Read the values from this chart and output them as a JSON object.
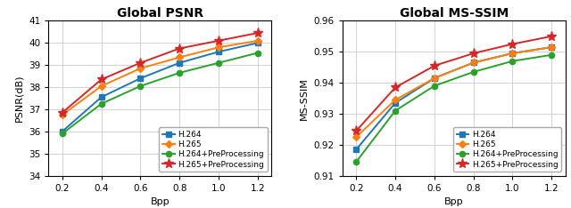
{
  "bpp": [
    0.2,
    0.4,
    0.6,
    0.8,
    1.0,
    1.2
  ],
  "psnr": {
    "H.264": [
      36.0,
      37.55,
      38.4,
      39.1,
      39.6,
      40.0
    ],
    "H.265": [
      36.75,
      38.05,
      38.85,
      39.35,
      39.8,
      40.1
    ],
    "H.264+PreProcessing": [
      35.9,
      37.25,
      38.05,
      38.65,
      39.1,
      39.55
    ],
    "H.265+PreProcessing": [
      36.85,
      38.35,
      39.1,
      39.75,
      40.1,
      40.45
    ]
  },
  "msssim": {
    "H.264": [
      0.9185,
      0.9335,
      0.9415,
      0.9465,
      0.9495,
      0.9515
    ],
    "H.265": [
      0.9225,
      0.9345,
      0.9415,
      0.9465,
      0.9495,
      0.9515
    ],
    "H.264+PreProcessing": [
      0.9145,
      0.931,
      0.939,
      0.9435,
      0.947,
      0.949
    ],
    "H.265+PreProcessing": [
      0.9245,
      0.9385,
      0.9455,
      0.9495,
      0.9525,
      0.955
    ]
  },
  "psnr_ylim": [
    34,
    41
  ],
  "psnr_yticks": [
    34,
    35,
    36,
    37,
    38,
    39,
    40,
    41
  ],
  "msssim_ylim": [
    0.91,
    0.96
  ],
  "msssim_yticks": [
    0.91,
    0.92,
    0.93,
    0.94,
    0.95,
    0.96
  ],
  "xlim": [
    0.13,
    1.27
  ],
  "xticks": [
    0.2,
    0.4,
    0.6,
    0.8,
    1.0,
    1.2
  ],
  "colors": {
    "H.264": "#1f77b4",
    "H.265": "#ff7f0e",
    "H.264+PreProcessing": "#2ca02c",
    "H.265+PreProcessing": "#d62728"
  },
  "markers": {
    "H.264": "s",
    "H.265": "D",
    "H.264+PreProcessing": "o",
    "H.265+PreProcessing": "*"
  },
  "marker_sizes": {
    "H.264": 4.5,
    "H.265": 4.5,
    "H.264+PreProcessing": 4.5,
    "H.265+PreProcessing": 8.0
  },
  "psnr_title": "Global PSNR",
  "msssim_title": "Global MS-SSIM",
  "xlabel": "Bpp",
  "psnr_ylabel": "PSNR(dB)",
  "msssim_ylabel": "MS-SSIM",
  "legend_labels": [
    "H.264",
    "H.265",
    "H.264+PreProcessing",
    "H.265+PreProcessing"
  ],
  "title_fontsize": 10,
  "axis_label_fontsize": 8,
  "tick_fontsize": 7.5,
  "legend_fontsize": 6.5,
  "linewidth": 1.4
}
